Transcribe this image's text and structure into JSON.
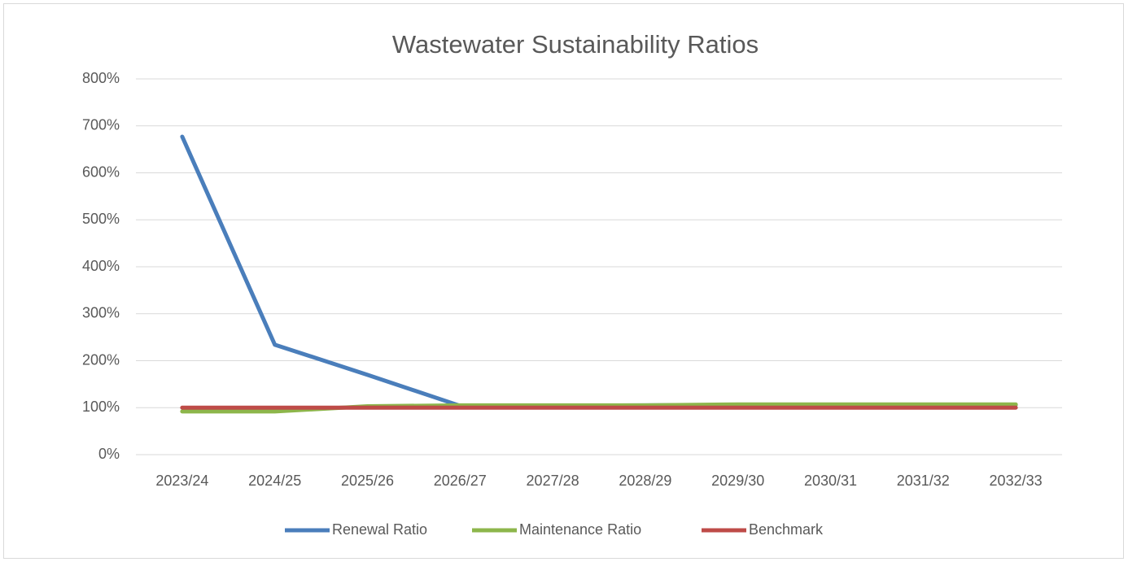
{
  "chart_data": {
    "type": "line",
    "title": "Wastewater Sustainability Ratios",
    "categories": [
      "2023/24",
      "2024/25",
      "2025/26",
      "2026/27",
      "2027/28",
      "2028/29",
      "2029/30",
      "2030/31",
      "2031/32",
      "2032/33"
    ],
    "series": [
      {
        "name": "Renewal Ratio",
        "color": "#4a7ebb",
        "values": [
          677,
          234,
          170,
          104,
          104,
          105,
          106,
          106,
          106,
          106
        ]
      },
      {
        "name": "Maintenance Ratio",
        "color": "#8db64b",
        "values": [
          92,
          92,
          103,
          105,
          105,
          105,
          107,
          107,
          107,
          107
        ]
      },
      {
        "name": "Benchmark",
        "color": "#be4b48",
        "values": [
          100,
          100,
          100,
          100,
          100,
          100,
          100,
          100,
          100,
          100
        ]
      }
    ],
    "ylim": [
      0,
      800
    ],
    "yticks": [
      {
        "value": 0,
        "label": "0%"
      },
      {
        "value": 100,
        "label": "100%"
      },
      {
        "value": 200,
        "label": "200%"
      },
      {
        "value": 300,
        "label": "300%"
      },
      {
        "value": 400,
        "label": "400%"
      },
      {
        "value": 500,
        "label": "500%"
      },
      {
        "value": 600,
        "label": "600%"
      },
      {
        "value": 700,
        "label": "700%"
      },
      {
        "value": 800,
        "label": "800%"
      }
    ],
    "grid": true,
    "legend": "bottom"
  }
}
